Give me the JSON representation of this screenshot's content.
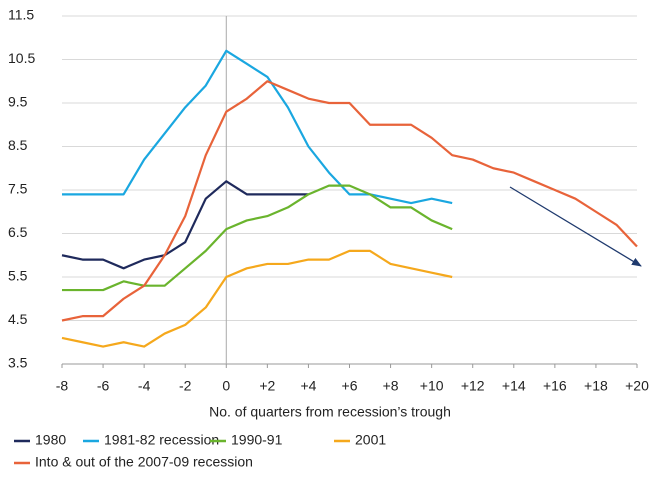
{
  "chart_data": {
    "type": "line",
    "x_label": "No. of quarters from recession’s trough",
    "x": [
      -8,
      -7,
      -6,
      -5,
      -4,
      -3,
      -2,
      -1,
      0,
      1,
      2,
      3,
      4,
      5,
      6,
      7,
      8,
      9,
      10,
      11,
      12,
      13,
      14,
      15,
      16,
      17,
      18,
      19,
      20
    ],
    "series": [
      {
        "name": "1980",
        "color": "#1f2a5c",
        "values": [
          6.0,
          5.9,
          5.9,
          5.7,
          5.9,
          6.0,
          6.3,
          7.3,
          7.7,
          7.4,
          7.4,
          7.4,
          7.4,
          null,
          null,
          null,
          null,
          null,
          null,
          null,
          null,
          null,
          null,
          null,
          null,
          null,
          null,
          null,
          null
        ]
      },
      {
        "name": "1981-82 recession",
        "color": "#1aa7e0",
        "values": [
          7.4,
          7.4,
          7.4,
          7.4,
          8.2,
          8.8,
          9.4,
          9.9,
          10.7,
          10.4,
          10.1,
          9.4,
          8.5,
          7.9,
          7.4,
          7.4,
          7.3,
          7.2,
          7.3,
          7.2,
          null,
          null,
          null,
          null,
          null,
          null,
          null,
          null,
          null
        ]
      },
      {
        "name": "1990-91",
        "color": "#6ab42d",
        "values": [
          5.2,
          5.2,
          5.2,
          5.4,
          5.3,
          5.3,
          5.7,
          6.1,
          6.6,
          6.8,
          6.9,
          7.1,
          7.4,
          7.6,
          7.6,
          7.4,
          7.1,
          7.1,
          6.8,
          6.6,
          null,
          null,
          null,
          null,
          null,
          null,
          null,
          null,
          null
        ]
      },
      {
        "name": "2001",
        "color": "#f5a81c",
        "values": [
          4.1,
          4.0,
          3.9,
          4.0,
          3.9,
          4.2,
          4.4,
          4.8,
          5.5,
          5.7,
          5.8,
          5.8,
          5.9,
          5.9,
          6.1,
          6.1,
          5.8,
          5.7,
          5.6,
          5.5,
          null,
          null,
          null,
          null,
          null,
          null,
          null,
          null,
          null
        ]
      },
      {
        "name": "Into & out of the 2007-09 recession",
        "color": "#e8633a",
        "values": [
          4.5,
          4.6,
          4.6,
          5.0,
          5.3,
          6.0,
          6.9,
          8.3,
          9.3,
          9.6,
          10.0,
          9.8,
          9.6,
          9.5,
          9.5,
          9.0,
          9.0,
          9.0,
          8.7,
          8.3,
          8.2,
          8.0,
          7.9,
          7.7,
          7.5,
          7.3,
          7.0,
          6.7,
          6.2
        ]
      }
    ],
    "xlim": [
      -8,
      20
    ],
    "xticks": [
      -8,
      -6,
      -4,
      -2,
      0,
      {
        "value": 2,
        "label": "+2"
      },
      {
        "value": 4,
        "label": "+4"
      },
      {
        "value": 6,
        "label": "+6"
      },
      {
        "value": 8,
        "label": "+8"
      },
      {
        "value": 10,
        "label": "+10"
      },
      {
        "value": 12,
        "label": "+12"
      },
      {
        "value": 14,
        "label": "+14"
      },
      {
        "value": 16,
        "label": "+16"
      },
      {
        "value": 18,
        "label": "+18"
      },
      {
        "value": 20,
        "label": "+20"
      }
    ],
    "ylim": [
      3.5,
      11.5
    ],
    "yticks": [
      3.5,
      4.5,
      5.5,
      6.5,
      7.5,
      8.5,
      9.5,
      10.5,
      11.5
    ],
    "grid": true
  }
}
